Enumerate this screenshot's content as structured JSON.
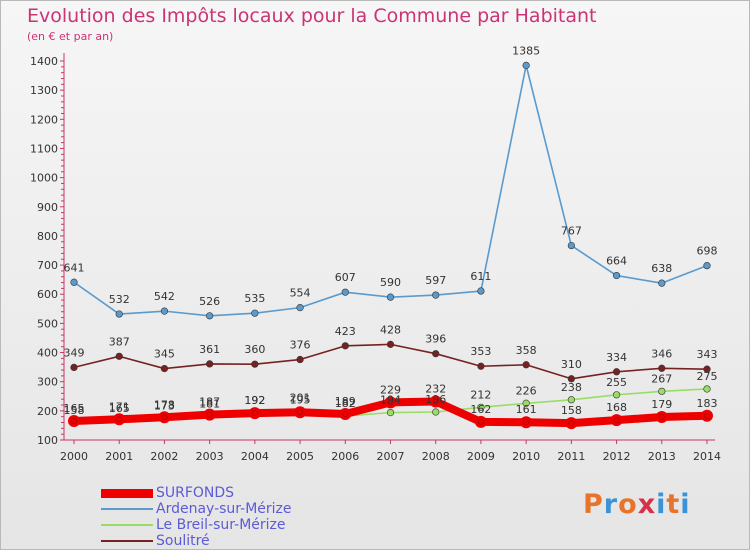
{
  "title": "Evolution des Impôts locaux pour la Commune par Habitant",
  "subtitle": "(en € et par an)",
  "logo": {
    "text": "Proxiti",
    "colors": [
      "#e8742c",
      "#3a93d6",
      "#e8742c",
      "#d6304a",
      "#3a93d6",
      "#e8742c",
      "#3a93d6"
    ]
  },
  "chart_data": {
    "type": "line",
    "x": [
      2000,
      2001,
      2002,
      2003,
      2004,
      2005,
      2006,
      2007,
      2008,
      2009,
      2010,
      2011,
      2012,
      2013,
      2014
    ],
    "ylim": [
      100,
      1400
    ],
    "yticks": [
      100,
      200,
      300,
      400,
      500,
      600,
      700,
      800,
      900,
      1000,
      1100,
      1200,
      1300,
      1400
    ],
    "grid": false,
    "series": [
      {
        "name": "SURFONDS",
        "color": "#ee0000",
        "values": [
          165,
          171,
          178,
          187,
          192,
          195,
          189,
          229,
          232,
          162,
          161,
          158,
          168,
          179,
          183
        ]
      },
      {
        "name": "Ardenay-sur-Mérize",
        "color": "#5a9acd",
        "values": [
          641,
          532,
          542,
          526,
          535,
          554,
          607,
          590,
          597,
          611,
          1385,
          767,
          664,
          638,
          698
        ]
      },
      {
        "name": "Le Breil-sur-Mérize",
        "color": "#99dd66",
        "values": [
          158,
          165,
          173,
          181,
          192,
          201,
          182,
          194,
          196,
          212,
          226,
          238,
          255,
          267,
          275
        ]
      },
      {
        "name": "Soulitré",
        "color": "#772222",
        "values": [
          349,
          387,
          345,
          361,
          360,
          376,
          423,
          428,
          396,
          353,
          358,
          310,
          334,
          346,
          343
        ]
      }
    ]
  }
}
